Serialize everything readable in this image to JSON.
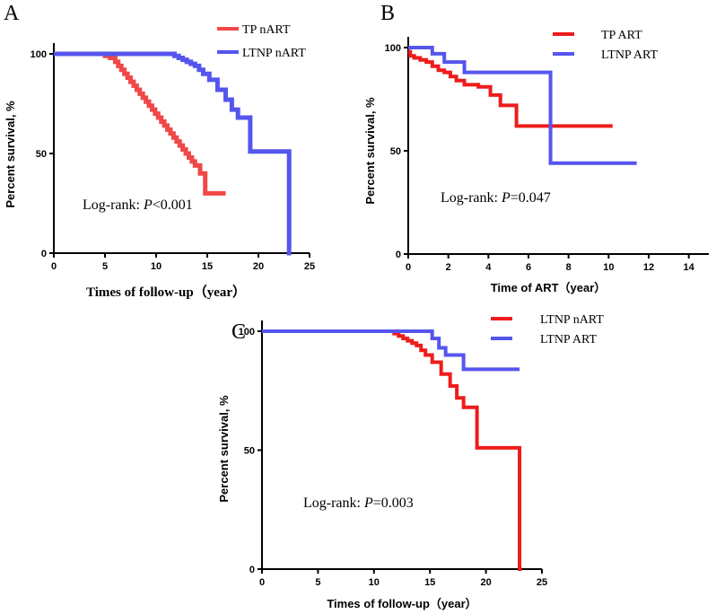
{
  "chart_data": [
    {
      "id": "A",
      "type": "line",
      "panel_label": "A",
      "title": "",
      "xlabel": "Times of follow-up（year）",
      "ylabel": "Percent survival, %",
      "xlim": [
        0,
        25
      ],
      "ylim": [
        0,
        100
      ],
      "xticks": [
        0,
        5,
        10,
        15,
        20,
        25
      ],
      "yticks": [
        0,
        50,
        100
      ],
      "legend_position": "top-right",
      "annotation": {
        "prefix": "Log-rank: ",
        "italic": "P",
        "suffix": "<0.001"
      },
      "series": [
        {
          "name": "TP nART",
          "color": "#f04848",
          "x": [
            0,
            4.0,
            5.0,
            5.5,
            6.0,
            6.3,
            6.6,
            6.9,
            7.2,
            7.5,
            7.8,
            8.1,
            8.4,
            8.7,
            9.0,
            9.3,
            9.6,
            9.9,
            10.2,
            10.5,
            10.8,
            11.1,
            11.4,
            11.7,
            12.0,
            12.3,
            12.6,
            12.9,
            13.2,
            13.5,
            13.8,
            14.3,
            14.8,
            16.8
          ],
          "y": [
            100,
            100,
            99,
            98,
            96,
            94,
            92,
            90,
            88,
            86,
            84,
            82,
            80,
            78,
            76,
            74,
            72,
            70,
            68,
            66,
            64,
            62,
            60,
            58,
            56,
            54,
            52,
            50,
            48,
            46,
            44,
            40,
            30,
            30
          ]
        },
        {
          "name": "LTNP nART",
          "color": "#5555ee",
          "x": [
            0,
            11.0,
            11.8,
            12.2,
            12.6,
            13.0,
            13.4,
            13.8,
            14.2,
            14.6,
            15.2,
            16.0,
            16.8,
            17.4,
            18.0,
            19.2,
            23.0,
            23.2
          ],
          "y": [
            100,
            100,
            99,
            98,
            97,
            96,
            95,
            94,
            92,
            90,
            87,
            82,
            77,
            72,
            68,
            51,
            0,
            0
          ]
        }
      ]
    },
    {
      "id": "B",
      "type": "line",
      "panel_label": "B",
      "title": "",
      "xlabel": "Time of ART（year）",
      "ylabel": "Percent survival, %",
      "xlim": [
        0,
        15
      ],
      "ylim": [
        0,
        100
      ],
      "xticks": [
        0,
        2,
        4,
        6,
        8,
        10,
        12,
        14
      ],
      "yticks": [
        0,
        50,
        100
      ],
      "legend_position": "top-right",
      "annotation": {
        "prefix": "Log-rank: ",
        "italic": "P",
        "suffix": "=0.047"
      },
      "series": [
        {
          "name": "TP ART",
          "color": "#ee1c1c",
          "x": [
            0,
            0.1,
            0.3,
            0.6,
            0.9,
            1.2,
            1.5,
            1.8,
            2.1,
            2.4,
            2.8,
            3.5,
            4.1,
            4.6,
            5.4,
            10.2
          ],
          "y": [
            98,
            96,
            95,
            94,
            93,
            91,
            89,
            88,
            86,
            84,
            82,
            81,
            77,
            72,
            62,
            62
          ]
        },
        {
          "name": "LTNP ART",
          "color": "#5555ee",
          "x": [
            0,
            1.2,
            1.8,
            2.8,
            7.1,
            11.4
          ],
          "y": [
            100,
            97,
            93,
            88,
            44,
            44
          ]
        }
      ]
    },
    {
      "id": "C",
      "type": "line",
      "panel_label": "C",
      "title": "",
      "xlabel": "Times of follow-up（year）",
      "ylabel": "Percent survival, %",
      "xlim": [
        0,
        25
      ],
      "ylim": [
        0,
        100
      ],
      "xticks": [
        0,
        5,
        10,
        15,
        20,
        25
      ],
      "yticks": [
        0,
        50,
        100
      ],
      "legend_position": "top-right",
      "annotation": {
        "prefix": "Log-rank: ",
        "italic": "P",
        "suffix": "=0.003"
      },
      "series": [
        {
          "name": "LTNP nART",
          "color": "#ee1c1c",
          "x": [
            0,
            11.0,
            11.8,
            12.2,
            12.6,
            13.0,
            13.4,
            13.8,
            14.2,
            14.6,
            15.2,
            16.0,
            16.8,
            17.4,
            18.0,
            19.2,
            23.0,
            23.2
          ],
          "y": [
            100,
            100,
            99,
            98,
            97,
            96,
            95,
            94,
            92,
            90,
            87,
            82,
            77,
            72,
            68,
            51,
            0,
            0
          ]
        },
        {
          "name": "LTNP ART",
          "color": "#5555ee",
          "x": [
            0,
            14.8,
            15.2,
            15.8,
            16.4,
            18.0,
            23.0
          ],
          "y": [
            100,
            100,
            97,
            93,
            90,
            84,
            84
          ]
        }
      ]
    }
  ]
}
